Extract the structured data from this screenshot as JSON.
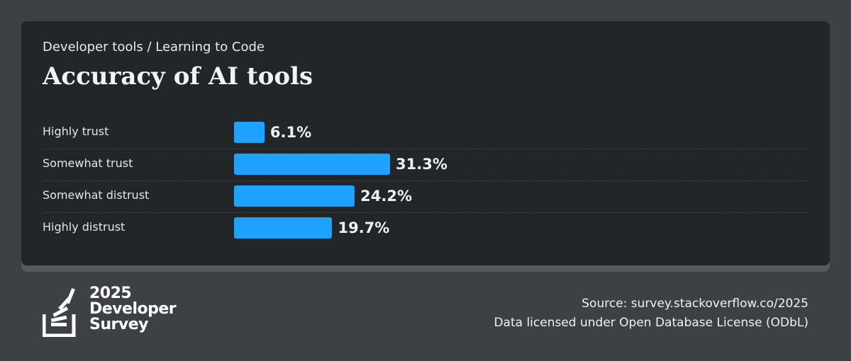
{
  "header": {
    "breadcrumb": "Developer tools / Learning to Code",
    "title": "Accuracy of AI tools"
  },
  "chart_data": {
    "type": "bar",
    "orientation": "horizontal",
    "categories": [
      "Highly trust",
      "Somewhat trust",
      "Somewhat distrust",
      "Highly distrust"
    ],
    "values": [
      6.1,
      31.3,
      24.2,
      19.7
    ],
    "value_labels": [
      "6.1%",
      "31.3%",
      "24.2%",
      "19.7%"
    ],
    "unit": "%",
    "bar_color": "#1ea1ff",
    "xlim": [
      0,
      100
    ],
    "grid": false,
    "legend": "none"
  },
  "brand": {
    "logo_icon": "stackoverflow-survey-icon",
    "line1": "2025",
    "line2": "Developer",
    "line3": "Survey"
  },
  "footer": {
    "source": "Source: survey.stackoverflow.co/2025",
    "license": "Data licensed under Open Database License (ODbL)"
  },
  "colors": {
    "background": "#3d4145",
    "card": "#232629",
    "accent": "#1ea1ff"
  }
}
